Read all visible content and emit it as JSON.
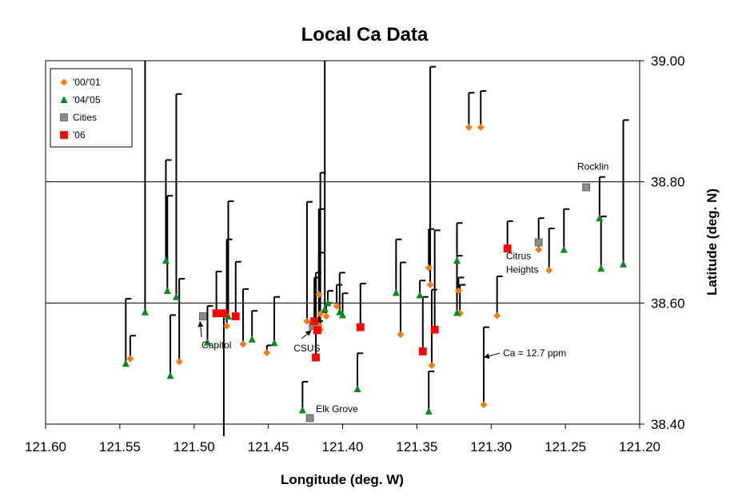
{
  "chart_data": {
    "type": "scatter",
    "title": "Local Ca Data",
    "xlabel": "Longitude (deg. W)",
    "ylabel": "Latitude (deg. N)",
    "xlim": [
      121.6,
      121.2
    ],
    "ylim": [
      38.4,
      39.0
    ],
    "x_reversed": true,
    "x_ticks": [
      "121.60",
      "121.55",
      "121.50",
      "121.45",
      "121.40",
      "121.35",
      "121.30",
      "121.25",
      "121.20"
    ],
    "y_ticks": [
      "38.40",
      "38.60",
      "38.80",
      "39.00"
    ],
    "y_axis_side": "right",
    "grid": {
      "y_major": [
        38.6,
        38.8
      ]
    },
    "legend": {
      "placement": "top-left",
      "entries": [
        {
          "name": "'00/'01",
          "marker": "diamond",
          "color": "#f07c12"
        },
        {
          "name": "'04/'05",
          "marker": "triangle",
          "color": "#0a8a1e"
        },
        {
          "name": "Cities",
          "marker": "square",
          "color": "#8a8a8a"
        },
        {
          "name": "'06",
          "marker": "square",
          "color": "#ff0000"
        }
      ]
    },
    "series": [
      {
        "name": "'00/'01",
        "marker": "diamond",
        "color": "#f07c12",
        "points": [
          {
            "lon": 121.543,
            "lat": 38.508,
            "ca_top": 38.546
          },
          {
            "lon": 121.51,
            "lat": 38.503,
            "ca_top": 38.64
          },
          {
            "lon": 121.478,
            "lat": 38.562,
            "ca_top": 38.705
          },
          {
            "lon": 121.467,
            "lat": 38.532,
            "ca_top": 38.623
          },
          {
            "lon": 121.451,
            "lat": 38.518,
            "ca_top": 38.53
          },
          {
            "lon": 121.424,
            "lat": 38.57,
            "ca_top": 38.767
          },
          {
            "lon": 121.416,
            "lat": 38.563,
            "ca_top": 38.683
          },
          {
            "lon": 121.415,
            "lat": 38.556,
            "ca_top": 38.585
          },
          {
            "lon": 121.415,
            "lat": 38.582,
            "ca_top": 38.815
          },
          {
            "lon": 121.416,
            "lat": 38.614,
            "ca_top": 38.755
          },
          {
            "lon": 121.411,
            "lat": 38.578,
            "ca_top": 38.6
          },
          {
            "lon": 121.404,
            "lat": 38.595,
            "ca_top": 38.63
          },
          {
            "lon": 121.361,
            "lat": 38.548,
            "ca_top": 38.667
          },
          {
            "lon": 121.342,
            "lat": 38.658,
            "ca_top": 38.722
          },
          {
            "lon": 121.341,
            "lat": 38.63,
            "ca_top": 38.99
          },
          {
            "lon": 121.34,
            "lat": 38.497,
            "ca_top": 38.622
          },
          {
            "lon": 121.322,
            "lat": 38.62,
            "ca_top": 38.642
          },
          {
            "lon": 121.321,
            "lat": 38.583,
            "ca_top": 38.63
          },
          {
            "lon": 121.315,
            "lat": 38.89,
            "ca_top": 38.947
          },
          {
            "lon": 121.307,
            "lat": 38.89,
            "ca_top": 38.95
          },
          {
            "lon": 121.296,
            "lat": 38.579,
            "ca_top": 38.644
          },
          {
            "lon": 121.305,
            "lat": 38.432,
            "ca_top": 38.56
          },
          {
            "lon": 121.268,
            "lat": 38.688,
            "ca_top": 38.74
          },
          {
            "lon": 121.261,
            "lat": 38.654,
            "ca_top": 38.723
          }
        ]
      },
      {
        "name": "'04/'05",
        "marker": "triangle",
        "color": "#0a8a1e",
        "points": [
          {
            "lon": 121.546,
            "lat": 38.5,
            "ca_top": 38.607
          },
          {
            "lon": 121.533,
            "lat": 38.585,
            "ca_top": 39.0
          },
          {
            "lon": 121.519,
            "lat": 38.67,
            "ca_top": 38.836
          },
          {
            "lon": 121.518,
            "lat": 38.62,
            "ca_top": 38.777
          },
          {
            "lon": 121.516,
            "lat": 38.48,
            "ca_top": 38.58
          },
          {
            "lon": 121.512,
            "lat": 38.61,
            "ca_top": 38.945
          },
          {
            "lon": 121.491,
            "lat": 38.535,
            "ca_top": 38.595
          },
          {
            "lon": 121.477,
            "lat": 38.578,
            "ca_top": 38.768
          },
          {
            "lon": 121.461,
            "lat": 38.54,
            "ca_top": 38.587
          },
          {
            "lon": 121.446,
            "lat": 38.534,
            "ca_top": 38.61
          },
          {
            "lon": 121.427,
            "lat": 38.423,
            "ca_top": 38.47
          },
          {
            "lon": 121.412,
            "lat": 38.59,
            "ca_top": 39.0
          },
          {
            "lon": 121.41,
            "lat": 38.6,
            "ca_top": 38.62
          },
          {
            "lon": 121.402,
            "lat": 38.585,
            "ca_top": 38.65
          },
          {
            "lon": 121.4,
            "lat": 38.58,
            "ca_top": 38.616
          },
          {
            "lon": 121.39,
            "lat": 38.458,
            "ca_top": 38.517
          },
          {
            "lon": 121.364,
            "lat": 38.617,
            "ca_top": 38.705
          },
          {
            "lon": 121.348,
            "lat": 38.613,
            "ca_top": 38.637
          },
          {
            "lon": 121.342,
            "lat": 38.421,
            "ca_top": 38.487
          },
          {
            "lon": 121.323,
            "lat": 38.67,
            "ca_top": 38.732
          },
          {
            "lon": 121.323,
            "lat": 38.584,
            "ca_top": 38.678
          },
          {
            "lon": 121.251,
            "lat": 38.688,
            "ca_top": 38.755
          },
          {
            "lon": 121.227,
            "lat": 38.74,
            "ca_top": 38.808
          },
          {
            "lon": 121.226,
            "lat": 38.657,
            "ca_top": 38.743
          },
          {
            "lon": 121.211,
            "lat": 38.664,
            "ca_top": 38.902
          }
        ]
      },
      {
        "name": "Cities",
        "marker": "square",
        "color": "#8a8a8a",
        "points": [
          {
            "lon": 121.494,
            "lat": 38.578
          },
          {
            "lon": 121.42,
            "lat": 38.562
          },
          {
            "lon": 121.422,
            "lat": 38.41
          },
          {
            "lon": 121.268,
            "lat": 38.7
          },
          {
            "lon": 121.236,
            "lat": 38.791
          }
        ]
      },
      {
        "name": "'06",
        "marker": "square",
        "color": "#ff0000",
        "points": [
          {
            "lon": 121.485,
            "lat": 38.583,
            "ca_top": 38.652
          },
          {
            "lon": 121.48,
            "lat": 38.583,
            "ca_top": 38.38
          },
          {
            "lon": 121.472,
            "lat": 38.578,
            "ca_top": 38.668
          },
          {
            "lon": 121.419,
            "lat": 38.57,
            "ca_top": 38.642
          },
          {
            "lon": 121.418,
            "lat": 38.51,
            "ca_top": 38.65
          },
          {
            "lon": 121.417,
            "lat": 38.555,
            "ca_top": 38.57
          },
          {
            "lon": 121.388,
            "lat": 38.56,
            "ca_top": 38.632
          },
          {
            "lon": 121.346,
            "lat": 38.52,
            "ca_top": 38.61
          },
          {
            "lon": 121.338,
            "lat": 38.556,
            "ca_top": 38.72
          },
          {
            "lon": 121.289,
            "lat": 38.69,
            "ca_top": 38.735
          }
        ]
      }
    ],
    "annotations": [
      {
        "text": "Capitol",
        "lon": 121.495,
        "lat": 38.525,
        "arrow_to": [
          121.496,
          38.57
        ]
      },
      {
        "text": "CSUS",
        "lon": 121.433,
        "lat": 38.52,
        "arrow_to": [
          121.421,
          38.555
        ]
      },
      {
        "text": "Elk Grove",
        "lon": 121.418,
        "lat": 38.42
      },
      {
        "text": "Citrus",
        "lon": 121.29,
        "lat": 38.672
      },
      {
        "text": "Heights",
        "lon": 121.29,
        "lat": 38.65
      },
      {
        "text": "Rocklin",
        "lon": 121.242,
        "lat": 38.82
      },
      {
        "text": "Ca = 12.7 ppm",
        "lon": 121.292,
        "lat": 38.512,
        "arrow_to": [
          121.305,
          38.51
        ]
      }
    ]
  }
}
